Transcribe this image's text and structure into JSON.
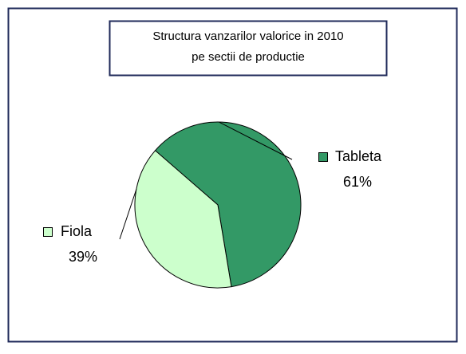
{
  "chart_data": {
    "type": "pie",
    "title": [
      "Structura vanzarilor valorice in 2010",
      "pe sectii de productie"
    ],
    "categories": [
      "Tableta",
      "Fiola"
    ],
    "values": [
      61,
      39
    ],
    "value_labels": [
      "61%",
      "39%"
    ],
    "colors": [
      "#339966",
      "#ccffcc"
    ]
  }
}
